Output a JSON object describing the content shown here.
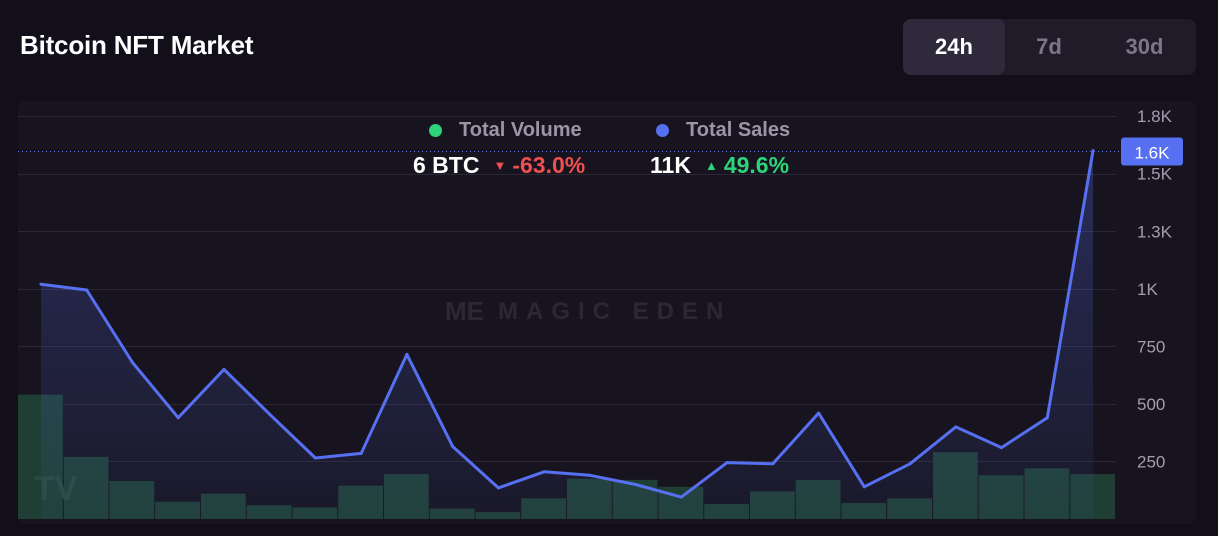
{
  "header": {
    "title": "Bitcoin NFT Market"
  },
  "ranges": [
    {
      "label": "24h",
      "active": true
    },
    {
      "label": "7d",
      "active": false
    },
    {
      "label": "30d",
      "active": false
    }
  ],
  "legend": {
    "volume": {
      "label": "Total Volume",
      "value": "6 BTC",
      "change": "-63.0%",
      "direction": "down",
      "color": "#2ed47a",
      "change_color": "#ef4f4f"
    },
    "sales": {
      "label": "Total Sales",
      "value": "11K",
      "change": "49.6%",
      "direction": "up",
      "color": "#5770f2",
      "change_color": "#2ed47a"
    }
  },
  "watermark": {
    "mark": "ME",
    "text": "MAGIC EDEN"
  },
  "icons": {
    "down": "triangle-down-icon",
    "up": "triangle-up-icon",
    "watermark": "magic-eden-logo-icon",
    "corner": "tradingview-logo-icon"
  },
  "chart_data": {
    "type": "line",
    "y_axis": {
      "ticks": [
        250,
        500,
        750,
        1000,
        1250,
        1500,
        1750
      ],
      "tick_labels": [
        "250",
        "500",
        "750",
        "1K",
        "1.3K",
        "1.5K",
        "1.8K"
      ],
      "ylim": [
        0,
        1800
      ],
      "position": "right",
      "grid": true
    },
    "crosshair": {
      "value": 1600,
      "label": "1.6K",
      "color": "#5770f2"
    },
    "series": [
      {
        "name": "Total Sales",
        "type": "line",
        "color": "#5770f2",
        "values": [
          1020,
          995,
          680,
          440,
          650,
          455,
          265,
          285,
          715,
          315,
          135,
          205,
          190,
          150,
          95,
          245,
          240,
          460,
          140,
          240,
          400,
          310,
          440,
          1600
        ]
      },
      {
        "name": "Total Volume",
        "type": "bar",
        "color": "#1f3f34",
        "values": [
          540,
          270,
          165,
          75,
          110,
          60,
          50,
          145,
          195,
          45,
          30,
          90,
          175,
          170,
          140,
          65,
          120,
          170,
          70,
          90,
          290,
          190,
          220,
          195
        ]
      }
    ]
  }
}
